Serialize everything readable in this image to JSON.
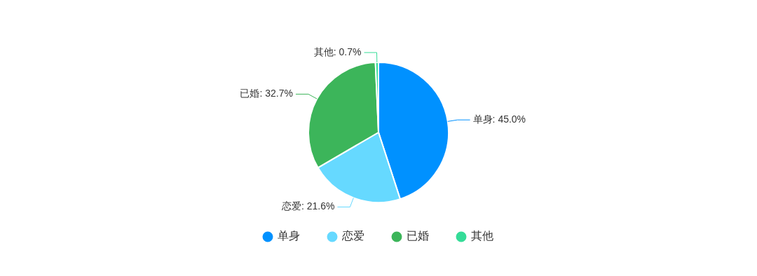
{
  "chart_data": {
    "type": "pie",
    "categories": [
      "单身",
      "恋爱",
      "已婚",
      "其他"
    ],
    "values": [
      45.0,
      21.6,
      32.7,
      0.7
    ],
    "value_labels": [
      "单身: 45.0%",
      "恋爱: 21.6%",
      "已婚: 32.7%",
      "其他: 0.7%"
    ],
    "colors": [
      "#0091ff",
      "#66d9ff",
      "#3cb55a",
      "#35dc98"
    ],
    "legend": "bottom"
  }
}
